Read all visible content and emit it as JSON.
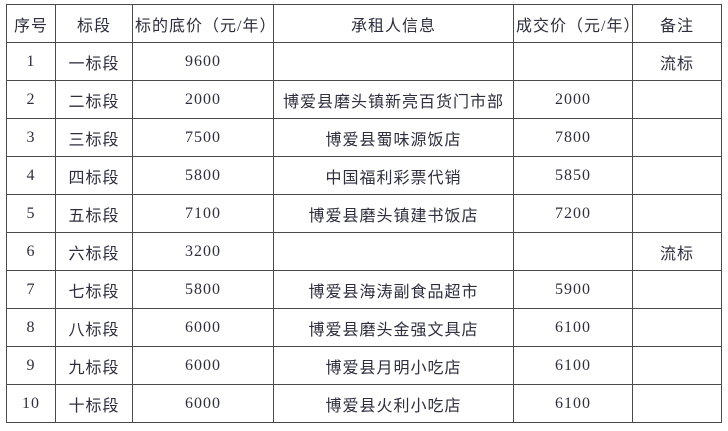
{
  "colors": {
    "background": "#ffffff",
    "border": "#4a4a4a",
    "text": "#2e2e3e"
  },
  "table": {
    "columns": [
      "序号",
      "标段",
      "标的底价（元/年）",
      "承租人信息",
      "成交价（元/年）",
      "备注"
    ],
    "rows": [
      {
        "seq": "1",
        "section": "一标段",
        "base_price": "9600",
        "tenant": "",
        "deal_price": "",
        "remark": "流标"
      },
      {
        "seq": "2",
        "section": "二标段",
        "base_price": "2000",
        "tenant": "博爱县磨头镇新亮百货门市部",
        "deal_price": "2000",
        "remark": ""
      },
      {
        "seq": "3",
        "section": "三标段",
        "base_price": "7500",
        "tenant": "博爱县蜀味源饭店",
        "deal_price": "7800",
        "remark": ""
      },
      {
        "seq": "4",
        "section": "四标段",
        "base_price": "5800",
        "tenant": "中国福利彩票代销",
        "deal_price": "5850",
        "remark": ""
      },
      {
        "seq": "5",
        "section": "五标段",
        "base_price": "7100",
        "tenant": "博爱县磨头镇建书饭店",
        "deal_price": "7200",
        "remark": ""
      },
      {
        "seq": "6",
        "section": "六标段",
        "base_price": "3200",
        "tenant": "",
        "deal_price": "",
        "remark": "流标"
      },
      {
        "seq": "7",
        "section": "七标段",
        "base_price": "5800",
        "tenant": "博爱县海涛副食品超市",
        "deal_price": "5900",
        "remark": ""
      },
      {
        "seq": "8",
        "section": "八标段",
        "base_price": "6000",
        "tenant": "博爱县磨头金强文具店",
        "deal_price": "6100",
        "remark": ""
      },
      {
        "seq": "9",
        "section": "九标段",
        "base_price": "6000",
        "tenant": "博爱县月明小吃店",
        "deal_price": "6100",
        "remark": ""
      },
      {
        "seq": "10",
        "section": "十标段",
        "base_price": "6000",
        "tenant": "博爱县火利小吃店",
        "deal_price": "6100",
        "remark": ""
      }
    ]
  }
}
